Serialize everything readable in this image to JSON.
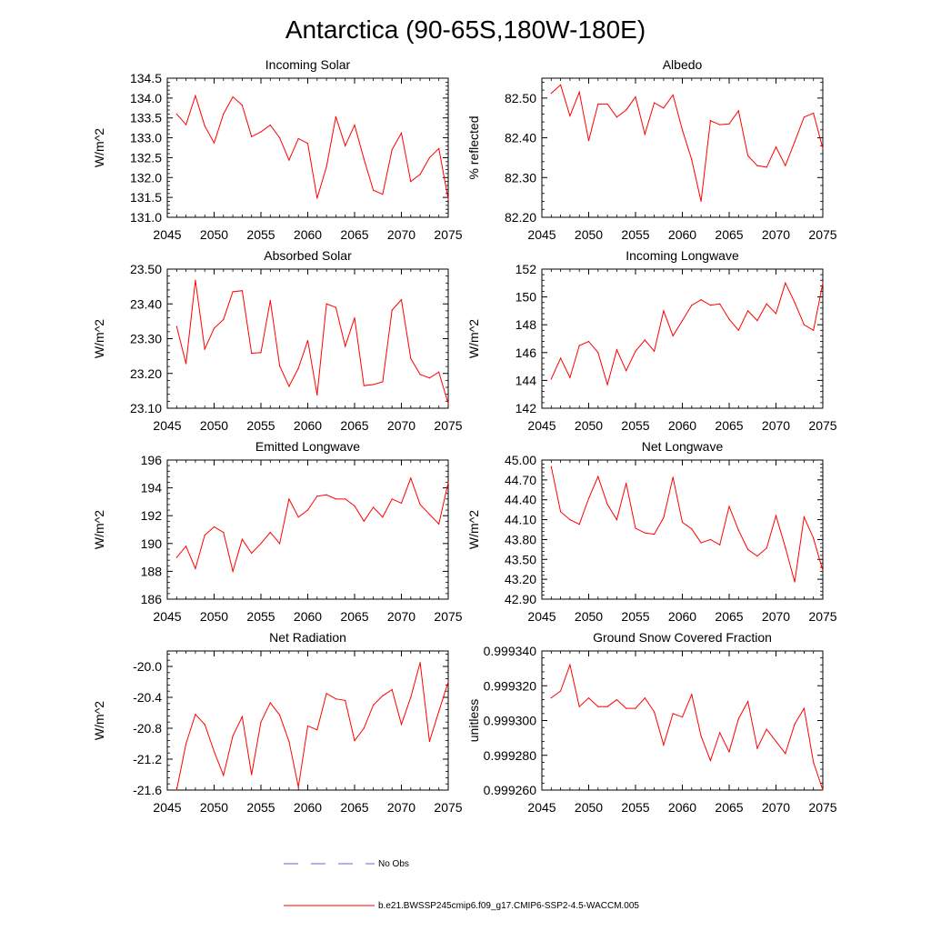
{
  "figure_title": "Antarctica (90-65S,180W-180E)",
  "legend": {
    "obs": {
      "label": "No Obs",
      "color": "#6666cc",
      "style": "dashed"
    },
    "model": {
      "label": "b.e21.BWSSP245cmip6.f09_g17.CMIP6-SSP2-4.5-WACCM.005",
      "color": "#ff0000",
      "style": "solid"
    }
  },
  "chart_data": [
    {
      "type": "line",
      "title": "Incoming Solar",
      "ylabel": "W/m^2",
      "xlim": [
        2045,
        2075
      ],
      "xticks": [
        2045,
        2050,
        2055,
        2060,
        2065,
        2070,
        2075
      ],
      "ylim": [
        131.0,
        134.5
      ],
      "yticks": [
        "131.0",
        "131.5",
        "132.0",
        "132.5",
        "133.0",
        "133.5",
        "134.0",
        "134.5"
      ],
      "series": [
        {
          "name": "b.e21.BWSSP245cmip6.f09_g17.CMIP6-SSP2-4.5-WACCM.005",
          "x": [
            2046,
            2047,
            2048,
            2049,
            2050,
            2051,
            2052,
            2053,
            2054,
            2055,
            2056,
            2057,
            2058,
            2059,
            2060,
            2061,
            2062,
            2063,
            2064,
            2065,
            2066,
            2067,
            2068,
            2069,
            2070,
            2071,
            2072,
            2073,
            2074,
            2075
          ],
          "values": [
            133.6,
            133.33,
            134.06,
            133.3,
            132.87,
            133.6,
            134.03,
            133.82,
            133.03,
            133.15,
            133.32,
            133.0,
            132.44,
            132.98,
            132.86,
            131.48,
            132.27,
            133.53,
            132.8,
            133.32,
            132.47,
            131.68,
            131.58,
            132.7,
            133.12,
            131.9,
            132.08,
            132.5,
            132.73,
            131.45
          ]
        }
      ]
    },
    {
      "type": "line",
      "title": "Albedo",
      "ylabel": "% reflected",
      "xlim": [
        2045,
        2075
      ],
      "xticks": [
        2045,
        2050,
        2055,
        2060,
        2065,
        2070,
        2075
      ],
      "ylim": [
        82.2,
        82.55
      ],
      "yticks": [
        "82.20",
        "82.30",
        "82.40",
        "82.50"
      ],
      "series": [
        {
          "name": "b.e21.BWSSP245cmip6.f09_g17.CMIP6-SSP2-4.5-WACCM.005",
          "x": [
            2046,
            2047,
            2048,
            2049,
            2050,
            2051,
            2052,
            2053,
            2054,
            2055,
            2056,
            2057,
            2058,
            2059,
            2060,
            2061,
            2062,
            2063,
            2064,
            2065,
            2066,
            2067,
            2068,
            2069,
            2070,
            2071,
            2072,
            2073,
            2074,
            2075
          ],
          "values": [
            82.512,
            82.533,
            82.455,
            82.515,
            82.393,
            82.485,
            82.485,
            82.452,
            82.47,
            82.503,
            82.409,
            82.488,
            82.475,
            82.508,
            82.42,
            82.345,
            82.24,
            82.443,
            82.433,
            82.435,
            82.468,
            82.355,
            82.33,
            82.326,
            82.377,
            82.33,
            82.39,
            82.452,
            82.462,
            82.373
          ]
        }
      ]
    },
    {
      "type": "line",
      "title": "Absorbed Solar",
      "ylabel": "W/m^2",
      "xlim": [
        2045,
        2075
      ],
      "xticks": [
        2045,
        2050,
        2055,
        2060,
        2065,
        2070,
        2075
      ],
      "ylim": [
        23.1,
        23.5
      ],
      "yticks": [
        "23.10",
        "23.20",
        "23.30",
        "23.40",
        "23.50"
      ],
      "series": [
        {
          "name": "b.e21.BWSSP245cmip6.f09_g17.CMIP6-SSP2-4.5-WACCM.005",
          "x": [
            2046,
            2047,
            2048,
            2049,
            2050,
            2051,
            2052,
            2053,
            2054,
            2055,
            2056,
            2057,
            2058,
            2059,
            2060,
            2061,
            2062,
            2063,
            2064,
            2065,
            2066,
            2067,
            2068,
            2069,
            2070,
            2071,
            2072,
            2073,
            2074,
            2075
          ],
          "values": [
            23.335,
            23.228,
            23.468,
            23.27,
            23.33,
            23.355,
            23.435,
            23.438,
            23.258,
            23.26,
            23.41,
            23.222,
            23.163,
            23.215,
            23.295,
            23.138,
            23.4,
            23.39,
            23.278,
            23.36,
            23.165,
            23.168,
            23.176,
            23.382,
            23.412,
            23.243,
            23.197,
            23.187,
            23.204,
            23.113
          ]
        }
      ]
    },
    {
      "type": "line",
      "title": "Incoming Longwave",
      "ylabel": "W/m^2",
      "xlim": [
        2045,
        2075
      ],
      "xticks": [
        2045,
        2050,
        2055,
        2060,
        2065,
        2070,
        2075
      ],
      "ylim": [
        142,
        152
      ],
      "yticks": [
        "142",
        "144",
        "146",
        "148",
        "150",
        "152"
      ],
      "series": [
        {
          "name": "b.e21.BWSSP245cmip6.f09_g17.CMIP6-SSP2-4.5-WACCM.005",
          "x": [
            2046,
            2047,
            2048,
            2049,
            2050,
            2051,
            2052,
            2053,
            2054,
            2055,
            2056,
            2057,
            2058,
            2059,
            2060,
            2061,
            2062,
            2063,
            2064,
            2065,
            2066,
            2067,
            2068,
            2069,
            2070,
            2071,
            2072,
            2073,
            2074,
            2075
          ],
          "values": [
            144.1,
            145.6,
            144.2,
            146.5,
            146.8,
            146.0,
            143.7,
            146.2,
            144.7,
            146.1,
            146.9,
            146.1,
            149.0,
            147.2,
            148.3,
            149.4,
            149.8,
            149.4,
            149.5,
            148.4,
            147.6,
            149.0,
            148.3,
            149.5,
            148.8,
            151.0,
            149.6,
            148.0,
            147.6,
            151.0
          ]
        }
      ]
    },
    {
      "type": "line",
      "title": "Emitted Longwave",
      "ylabel": "W/m^2",
      "xlim": [
        2045,
        2075
      ],
      "xticks": [
        2045,
        2050,
        2055,
        2060,
        2065,
        2070,
        2075
      ],
      "ylim": [
        186,
        196
      ],
      "yticks": [
        "186",
        "188",
        "190",
        "192",
        "194",
        "196"
      ],
      "series": [
        {
          "name": "b.e21.BWSSP245cmip6.f09_g17.CMIP6-SSP2-4.5-WACCM.005",
          "x": [
            2046,
            2047,
            2048,
            2049,
            2050,
            2051,
            2052,
            2053,
            2054,
            2055,
            2056,
            2057,
            2058,
            2059,
            2060,
            2061,
            2062,
            2063,
            2064,
            2065,
            2066,
            2067,
            2068,
            2069,
            2070,
            2071,
            2072,
            2073,
            2074,
            2075
          ],
          "values": [
            189.0,
            189.8,
            188.2,
            190.6,
            191.2,
            190.8,
            188.0,
            190.3,
            189.3,
            190.0,
            190.8,
            190.0,
            193.2,
            191.9,
            192.4,
            193.4,
            193.5,
            193.2,
            193.2,
            192.7,
            191.6,
            192.6,
            191.9,
            193.2,
            192.9,
            194.7,
            192.8,
            192.1,
            191.4,
            194.4
          ]
        }
      ]
    },
    {
      "type": "line",
      "title": "Net Longwave",
      "ylabel": "W/m^2",
      "xlim": [
        2045,
        2075
      ],
      "xticks": [
        2045,
        2050,
        2055,
        2060,
        2065,
        2070,
        2075
      ],
      "ylim": [
        42.9,
        45.0
      ],
      "yticks": [
        "42.90",
        "43.20",
        "43.50",
        "43.80",
        "44.10",
        "44.40",
        "44.70",
        "45.00"
      ],
      "series": [
        {
          "name": "b.e21.BWSSP245cmip6.f09_g17.CMIP6-SSP2-4.5-WACCM.005",
          "x": [
            2046,
            2047,
            2048,
            2049,
            2050,
            2051,
            2052,
            2053,
            2054,
            2055,
            2056,
            2057,
            2058,
            2059,
            2060,
            2061,
            2062,
            2063,
            2064,
            2065,
            2066,
            2067,
            2068,
            2069,
            2070,
            2071,
            2072,
            2073,
            2074,
            2075
          ],
          "values": [
            44.9,
            44.22,
            44.1,
            44.03,
            44.42,
            44.75,
            44.33,
            44.1,
            44.65,
            43.97,
            43.9,
            43.88,
            44.13,
            44.74,
            44.06,
            43.96,
            43.75,
            43.8,
            43.72,
            44.3,
            43.94,
            43.65,
            43.55,
            43.67,
            44.16,
            43.68,
            43.16,
            44.14,
            43.82,
            43.33
          ]
        }
      ]
    },
    {
      "type": "line",
      "title": "Net Radiation",
      "ylabel": "W/m^2",
      "xlim": [
        2045,
        2075
      ],
      "xticks": [
        2045,
        2050,
        2055,
        2060,
        2065,
        2070,
        2075
      ],
      "ylim": [
        -21.6,
        -19.8
      ],
      "yticks": [
        "-21.6",
        "-21.2",
        "-20.8",
        "-20.4",
        "-20.0"
      ],
      "series": [
        {
          "name": "b.e21.BWSSP245cmip6.f09_g17.CMIP6-SSP2-4.5-WACCM.005",
          "x": [
            2046,
            2047,
            2048,
            2049,
            2050,
            2051,
            2052,
            2053,
            2054,
            2055,
            2056,
            2057,
            2058,
            2059,
            2060,
            2061,
            2062,
            2063,
            2064,
            2065,
            2066,
            2067,
            2068,
            2069,
            2070,
            2071,
            2072,
            2073,
            2074,
            2075
          ],
          "values": [
            -21.6,
            -21.0,
            -20.62,
            -20.75,
            -21.1,
            -21.41,
            -20.9,
            -20.65,
            -21.4,
            -20.72,
            -20.47,
            -20.63,
            -20.97,
            -21.56,
            -20.77,
            -20.82,
            -20.35,
            -20.42,
            -20.44,
            -20.96,
            -20.8,
            -20.5,
            -20.38,
            -20.3,
            -20.75,
            -20.4,
            -19.95,
            -20.97,
            -20.58,
            -20.2
          ]
        }
      ]
    },
    {
      "type": "line",
      "title": "Ground Snow Covered Fraction",
      "ylabel": "unitless",
      "xlim": [
        2045,
        2075
      ],
      "xticks": [
        2045,
        2050,
        2055,
        2060,
        2065,
        2070,
        2075
      ],
      "ylim": [
        0.99926,
        0.99934
      ],
      "yticks": [
        "0.999260",
        "0.999280",
        "0.999300",
        "0.999320",
        "0.999340"
      ],
      "series": [
        {
          "name": "b.e21.BWSSP245cmip6.f09_g17.CMIP6-SSP2-4.5-WACCM.005",
          "x": [
            2046,
            2047,
            2048,
            2049,
            2050,
            2051,
            2052,
            2053,
            2054,
            2055,
            2056,
            2057,
            2058,
            2059,
            2060,
            2061,
            2062,
            2063,
            2064,
            2065,
            2066,
            2067,
            2068,
            2069,
            2070,
            2071,
            2072,
            2073,
            2074,
            2075
          ],
          "values": [
            0.999313,
            0.999317,
            0.999332,
            0.999308,
            0.999313,
            0.999308,
            0.999308,
            0.999312,
            0.999307,
            0.999307,
            0.999313,
            0.999305,
            0.999286,
            0.999304,
            0.999302,
            0.999315,
            0.999291,
            0.999277,
            0.999293,
            0.999282,
            0.999301,
            0.999311,
            0.999284,
            0.999295,
            0.999288,
            0.999281,
            0.999298,
            0.999307,
            0.999276,
            0.99926
          ]
        }
      ]
    }
  ]
}
